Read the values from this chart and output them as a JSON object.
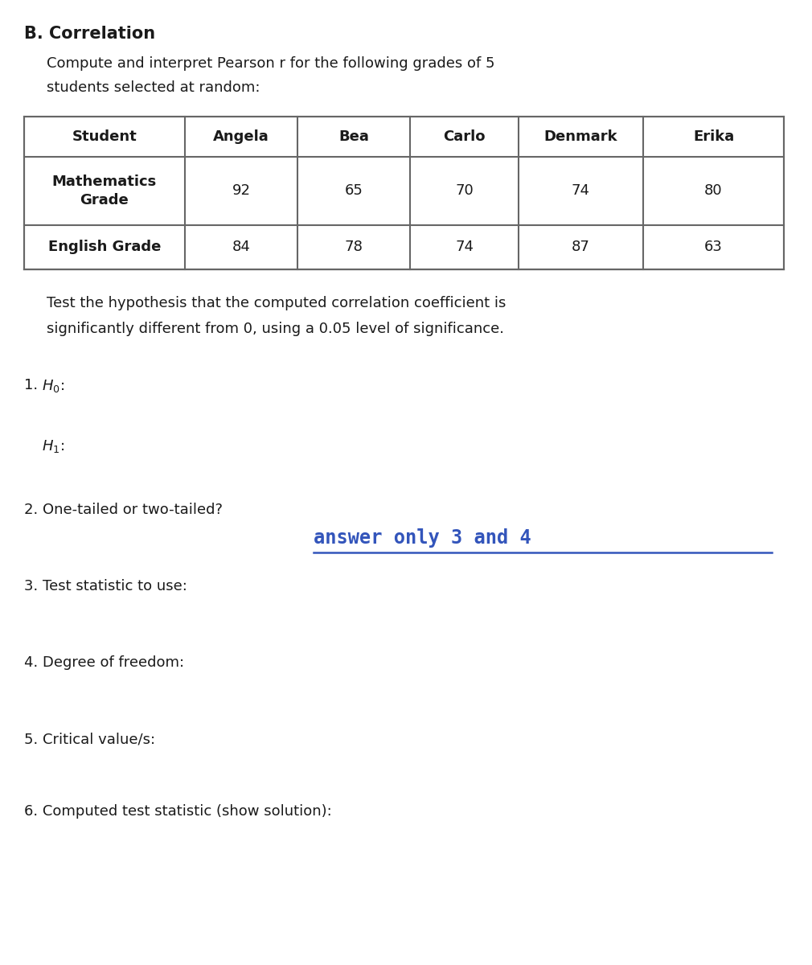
{
  "title": "B. Correlation",
  "subtitle_line1": "Compute and interpret Pearson r for the following grades of 5",
  "subtitle_line2": "students selected at random:",
  "table_headers": [
    "Student",
    "Angela",
    "Bea",
    "Carlo",
    "Denmark",
    "Erika"
  ],
  "table_row1_label": "Mathematics\nGrade",
  "table_row1_values": [
    "92",
    "65",
    "70",
    "74",
    "80"
  ],
  "table_row2_label": "English Grade",
  "table_row2_values": [
    "84",
    "78",
    "74",
    "87",
    "63"
  ],
  "hypothesis_line1": "Test the hypothesis that the computed correlation coefficient is",
  "hypothesis_line2": "significantly different from 0, using a 0.05 level of significance.",
  "annotation_text": "answer only 3 and 4",
  "annotation_color": "#3355bb",
  "bg_color": "#ffffff",
  "text_color": "#1a1a1a",
  "table_border_color": "#666666",
  "font_size_title": 15,
  "font_size_body": 13,
  "font_size_annotation": 17
}
